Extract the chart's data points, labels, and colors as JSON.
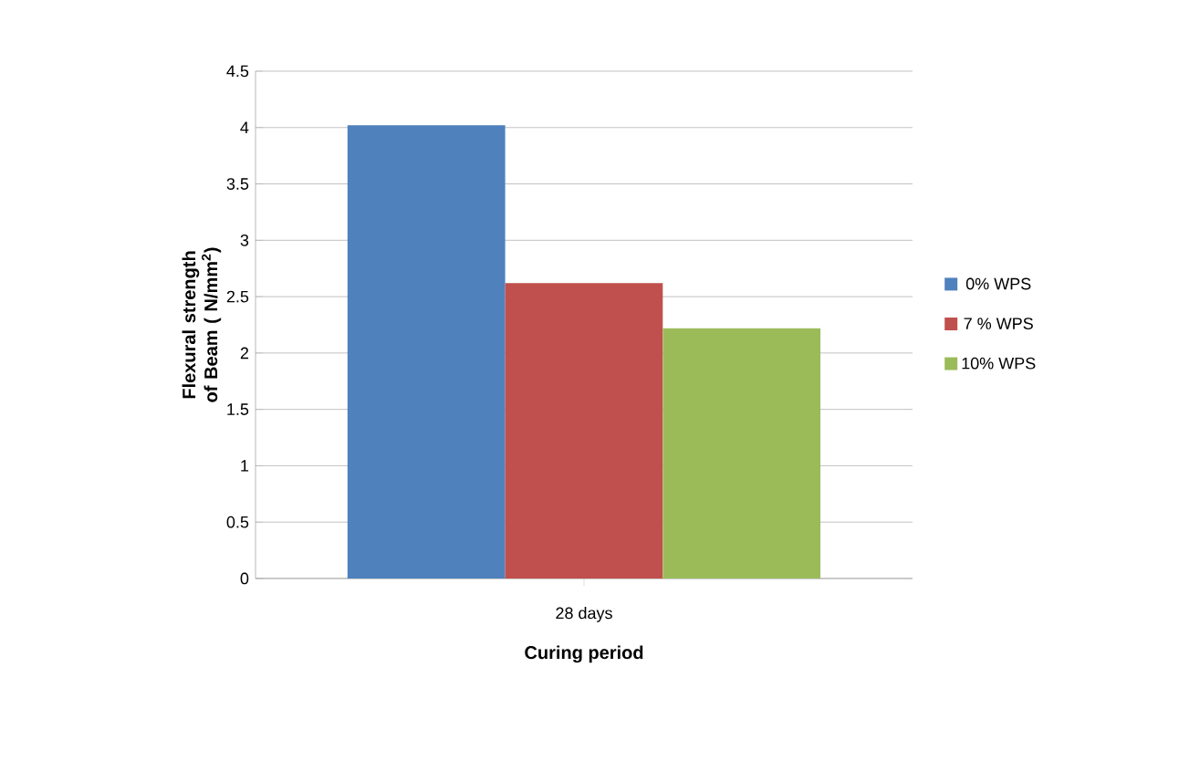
{
  "chart_data": {
    "type": "bar",
    "xlabel": "Curing period",
    "ylabel": "Flexural strength of Beam ( N/mm$^{2}$)",
    "categories": [
      "28 days"
    ],
    "series": [
      {
        "name": "0% WPS",
        "color": "#4f81bd",
        "values": [
          4.02
        ]
      },
      {
        "name": "7 % WPS",
        "color": "#c0504d",
        "values": [
          2.62
        ]
      },
      {
        "name": "10% WPS",
        "color": "#9bbb59",
        "values": [
          2.22
        ]
      }
    ],
    "ylim": [
      0,
      4.5
    ],
    "yticks": [
      0,
      0.5,
      1,
      1.5,
      2,
      2.5,
      3,
      3.5,
      4,
      4.5
    ],
    "grid": "y",
    "legend": "right"
  }
}
